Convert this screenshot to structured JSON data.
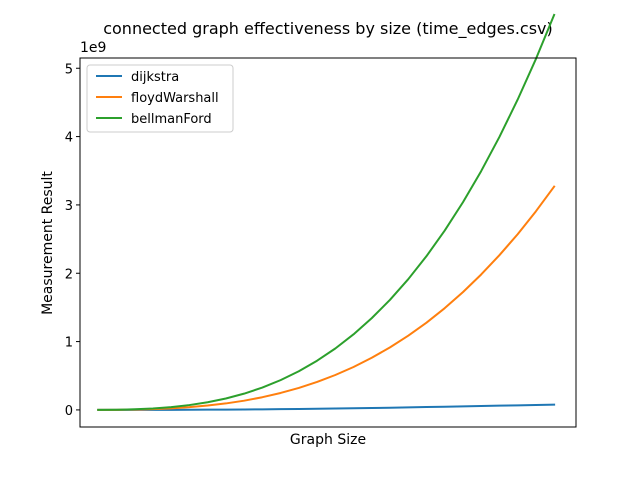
{
  "chart_data": {
    "type": "line",
    "title": "connected graph effectiveness by size (time_edges.csv)",
    "xlabel": "Graph Size",
    "ylabel": "Measurement Result",
    "offset_label": "1e9",
    "x_ticks_shown": false,
    "x": [
      1,
      2,
      3,
      4,
      5,
      6,
      7,
      8,
      9,
      10,
      11,
      12,
      13,
      14,
      15,
      16,
      17,
      18,
      19,
      20,
      21,
      22,
      23,
      24,
      25,
      26
    ],
    "xlim": [
      0,
      27.2
    ],
    "ylim": [
      -0.25,
      5.15
    ],
    "yticks": [
      0,
      1,
      2,
      3,
      4,
      5
    ],
    "ytick_labels": [
      "0",
      "1",
      "2",
      "3",
      "4",
      "5"
    ],
    "grid": false,
    "legend_position": "upper-left",
    "series": [
      {
        "name": "dijkstra",
        "color": "#1f77b4",
        "values": [
          1e-05,
          0.0001,
          0.0003,
          0.0007,
          0.0013,
          0.0022,
          0.0034,
          0.0048,
          0.0066,
          0.0087,
          0.011,
          0.014,
          0.017,
          0.02,
          0.024,
          0.028,
          0.032,
          0.037,
          0.042,
          0.047,
          0.052,
          0.057,
          0.062,
          0.067,
          0.072,
          0.077
        ]
      },
      {
        "name": "floydWarshall",
        "color": "#ff7f0e",
        "values": [
          0.0002,
          0.0014,
          0.005,
          0.012,
          0.023,
          0.04,
          0.064,
          0.095,
          0.135,
          0.186,
          0.248,
          0.322,
          0.409,
          0.511,
          0.628,
          0.763,
          0.915,
          1.086,
          1.277,
          1.489,
          1.724,
          1.982,
          2.264,
          2.571,
          2.906,
          3.268
        ]
      },
      {
        "name": "bellmanFord",
        "color": "#2ca02c",
        "values": [
          0.0004,
          0.0025,
          0.009,
          0.021,
          0.041,
          0.071,
          0.112,
          0.167,
          0.238,
          0.327,
          0.436,
          0.566,
          0.72,
          0.899,
          1.106,
          1.343,
          1.611,
          1.913,
          2.25,
          2.625,
          3.039,
          3.495,
          3.995,
          4.541,
          5.135,
          5.78
        ]
      }
    ]
  }
}
